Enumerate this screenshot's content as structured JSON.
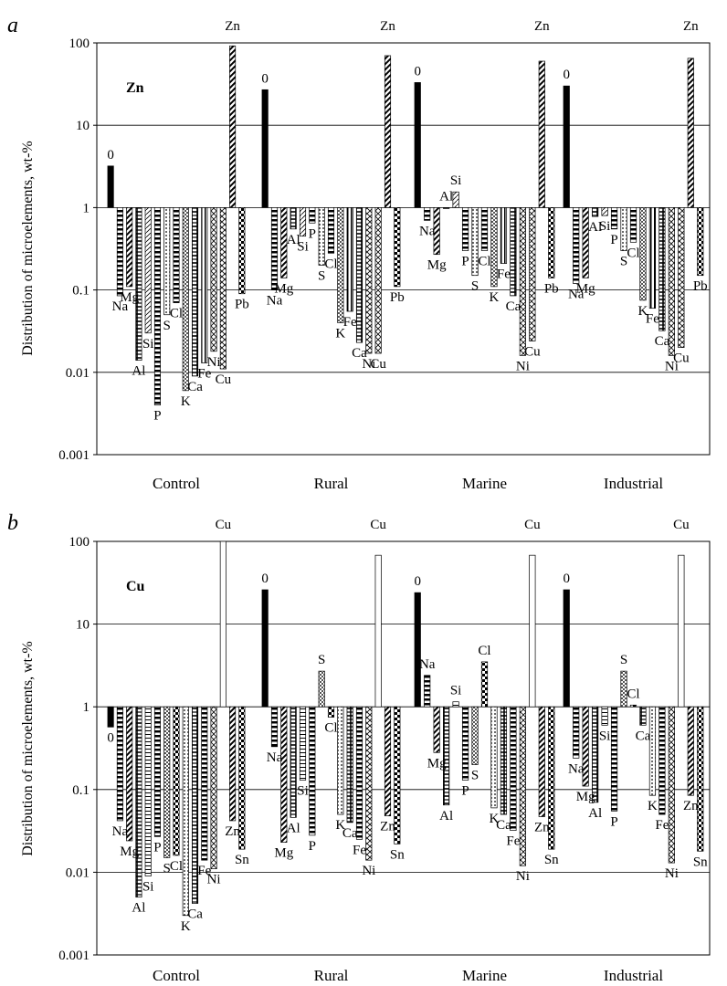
{
  "chart_data": [
    {
      "type": "bar",
      "panel_letter": "a",
      "element_label": "Zn",
      "ylabel": "Distribution of microelements, wt-%",
      "yscale": "log",
      "ylim": [
        0.001,
        100
      ],
      "yticks": [
        "0.001",
        "0.01",
        "0.1",
        "1",
        "10",
        "100"
      ],
      "baseline": 1,
      "grid": true,
      "categories": [
        "Control",
        "Rural",
        "Marine",
        "Industrial"
      ],
      "groups": [
        {
          "name": "Control",
          "bars": [
            {
              "label": "0",
              "value": 3.2
            },
            {
              "label": "Na",
              "value": 0.085
            },
            {
              "label": "Mg",
              "value": 0.11
            },
            {
              "label": "Al",
              "value": 0.014
            },
            {
              "label": "Si",
              "value": 0.03
            },
            {
              "label": "P",
              "value": 0.004
            },
            {
              "label": "S",
              "value": 0.05
            },
            {
              "label": "Cl",
              "value": 0.07
            },
            {
              "label": "K",
              "value": 0.006
            },
            {
              "label": "Ca",
              "value": 0.009
            },
            {
              "label": "Fe",
              "value": 0.013
            },
            {
              "label": "Ni",
              "value": 0.018
            },
            {
              "label": "Cu",
              "value": 0.011
            },
            {
              "label": "Zn",
              "value": 92
            },
            {
              "label": "Pb",
              "value": 0.09
            }
          ]
        },
        {
          "name": "Rural",
          "bars": [
            {
              "label": "0",
              "value": 27
            },
            {
              "label": "Na",
              "value": 0.1
            },
            {
              "label": "Mg",
              "value": 0.14
            },
            {
              "label": "Al",
              "value": 0.55
            },
            {
              "label": "Si",
              "value": 0.45
            },
            {
              "label": "P",
              "value": 0.65
            },
            {
              "label": "S",
              "value": 0.2
            },
            {
              "label": "Cl",
              "value": 0.28
            },
            {
              "label": "K",
              "value": 0.04
            },
            {
              "label": "Fe",
              "value": 0.055
            },
            {
              "label": "Ca",
              "value": 0.023
            },
            {
              "label": "Ni",
              "value": 0.017
            },
            {
              "label": "Cu",
              "value": 0.017
            },
            {
              "label": "Zn",
              "value": 70
            },
            {
              "label": "Pb",
              "value": 0.11
            }
          ]
        },
        {
          "name": "Marine",
          "bars": [
            {
              "label": "0",
              "value": 33
            },
            {
              "label": "Na",
              "value": 0.7
            },
            {
              "label": "Mg",
              "value": 0.27
            },
            {
              "label": "Al",
              "value": 1.0
            },
            {
              "label": "Si",
              "value": 1.55
            },
            {
              "label": "P",
              "value": 0.3
            },
            {
              "label": "S",
              "value": 0.15
            },
            {
              "label": "Cl",
              "value": 0.3
            },
            {
              "label": "K",
              "value": 0.11
            },
            {
              "label": "Fe",
              "value": 0.21
            },
            {
              "label": "Ca",
              "value": 0.085
            },
            {
              "label": "Ni",
              "value": 0.016
            },
            {
              "label": "Cu",
              "value": 0.024
            },
            {
              "label": "Zn",
              "value": 60
            },
            {
              "label": "Pb",
              "value": 0.14
            }
          ]
        },
        {
          "name": "Industrial",
          "bars": [
            {
              "label": "0",
              "value": 30
            },
            {
              "label": "Na",
              "value": 0.12
            },
            {
              "label": "Mg",
              "value": 0.14
            },
            {
              "label": "Al",
              "value": 0.78
            },
            {
              "label": "Si",
              "value": 0.8
            },
            {
              "label": "P",
              "value": 0.55
            },
            {
              "label": "S",
              "value": 0.3
            },
            {
              "label": "Cl",
              "value": 0.38
            },
            {
              "label": "K",
              "value": 0.075
            },
            {
              "label": "Fe",
              "value": 0.06
            },
            {
              "label": "Ca",
              "value": 0.032
            },
            {
              "label": "Ni",
              "value": 0.016
            },
            {
              "label": "Cu",
              "value": 0.02
            },
            {
              "label": "Zn",
              "value": 65
            },
            {
              "label": "Pb",
              "value": 0.15
            }
          ]
        }
      ]
    },
    {
      "type": "bar",
      "panel_letter": "b",
      "element_label": "Cu",
      "ylabel": "Distribution of microelements, wt-%",
      "yscale": "log",
      "ylim": [
        0.001,
        100
      ],
      "yticks": [
        "0.001",
        "0.01",
        "0.1",
        "1",
        "10",
        "100"
      ],
      "baseline": 1,
      "grid": true,
      "categories": [
        "Control",
        "Rural",
        "Marine",
        "Industrial"
      ],
      "groups": [
        {
          "name": "Control",
          "bars": [
            {
              "label": "0",
              "value": 0.57
            },
            {
              "label": "Na",
              "value": 0.042
            },
            {
              "label": "Mg",
              "value": 0.024
            },
            {
              "label": "Al",
              "value": 0.005
            },
            {
              "label": "Si",
              "value": 0.009
            },
            {
              "label": "P",
              "value": 0.027
            },
            {
              "label": "S",
              "value": 0.015
            },
            {
              "label": "Cl",
              "value": 0.016
            },
            {
              "label": "K",
              "value": 0.003
            },
            {
              "label": "Ca",
              "value": 0.0042
            },
            {
              "label": "Fe",
              "value": 0.014
            },
            {
              "label": "Ni",
              "value": 0.011
            },
            {
              "label": "Cu",
              "value": 100
            },
            {
              "label": "Zn",
              "value": 0.042
            },
            {
              "label": "Sn",
              "value": 0.019
            }
          ]
        },
        {
          "name": "Rural",
          "bars": [
            {
              "label": "0",
              "value": 26
            },
            {
              "label": "Na",
              "value": 0.33
            },
            {
              "label": "Mg",
              "value": 0.023
            },
            {
              "label": "Al",
              "value": 0.046
            },
            {
              "label": "Si",
              "value": 0.13
            },
            {
              "label": "P",
              "value": 0.028
            },
            {
              "label": "S",
              "value": 2.7
            },
            {
              "label": "Cl",
              "value": 0.75
            },
            {
              "label": "K",
              "value": 0.05
            },
            {
              "label": "Ca",
              "value": 0.04
            },
            {
              "label": "Fe",
              "value": 0.025
            },
            {
              "label": "Ni",
              "value": 0.014
            },
            {
              "label": "Cu",
              "value": 68
            },
            {
              "label": "Zn",
              "value": 0.048
            },
            {
              "label": "Sn",
              "value": 0.022
            }
          ]
        },
        {
          "name": "Marine",
          "bars": [
            {
              "label": "0",
              "value": 24
            },
            {
              "label": "Na",
              "value": 2.4
            },
            {
              "label": "Mg",
              "value": 0.28
            },
            {
              "label": "Al",
              "value": 0.065
            },
            {
              "label": "Si",
              "value": 1.15
            },
            {
              "label": "P",
              "value": 0.13
            },
            {
              "label": "S",
              "value": 0.2
            },
            {
              "label": "Cl",
              "value": 3.5
            },
            {
              "label": "K",
              "value": 0.06
            },
            {
              "label": "Ca",
              "value": 0.05
            },
            {
              "label": "Fe",
              "value": 0.032
            },
            {
              "label": "Ni",
              "value": 0.012
            },
            {
              "label": "Cu",
              "value": 68
            },
            {
              "label": "Zn",
              "value": 0.047
            },
            {
              "label": "Sn",
              "value": 0.019
            }
          ]
        },
        {
          "name": "Industrial",
          "bars": [
            {
              "label": "0",
              "value": 26
            },
            {
              "label": "Na",
              "value": 0.24
            },
            {
              "label": "Mg",
              "value": 0.11
            },
            {
              "label": "Al",
              "value": 0.07
            },
            {
              "label": "Si",
              "value": 0.6
            },
            {
              "label": "P",
              "value": 0.055
            },
            {
              "label": "S",
              "value": 2.7
            },
            {
              "label": "Cl",
              "value": 1.05
            },
            {
              "label": "Ca",
              "value": 0.6
            },
            {
              "label": "K",
              "value": 0.085
            },
            {
              "label": "Fe",
              "value": 0.05
            },
            {
              "label": "Ni",
              "value": 0.013
            },
            {
              "label": "Cu",
              "value": 68
            },
            {
              "label": "Zn",
              "value": 0.085
            },
            {
              "label": "Sn",
              "value": 0.018
            }
          ]
        }
      ]
    }
  ]
}
